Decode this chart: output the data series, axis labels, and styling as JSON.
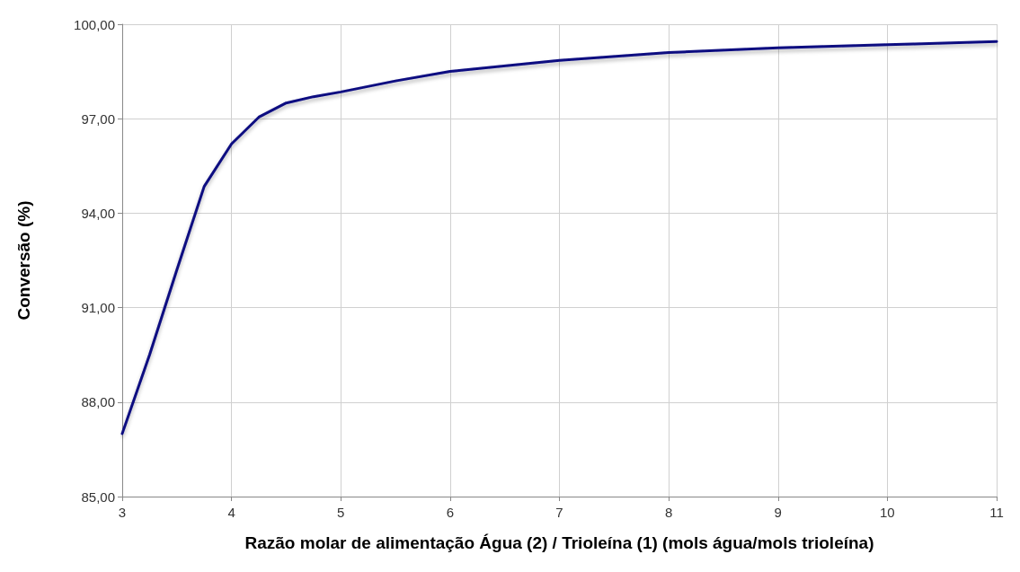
{
  "chart_data": {
    "type": "line",
    "xlabel": "Razão molar de alimentação Água (2) / Trioleína (1) (mols água/mols trioleína)",
    "ylabel": "Conversão (%)",
    "x": [
      3,
      3.25,
      3.5,
      3.75,
      4,
      4.25,
      4.5,
      4.75,
      5,
      5.5,
      6,
      7,
      8,
      9,
      10,
      11
    ],
    "series": [
      {
        "color": "#0a0a80",
        "values": [
          87.0,
          89.5,
          92.2,
          94.85,
          96.2,
          97.05,
          97.5,
          97.7,
          97.85,
          98.2,
          98.5,
          98.85,
          99.1,
          99.25,
          99.35,
          99.45
        ]
      }
    ],
    "xlim": [
      3,
      11
    ],
    "xticks": [
      3,
      4,
      5,
      6,
      7,
      8,
      9,
      10,
      11
    ],
    "ylim": [
      85,
      100
    ],
    "yticks": [
      {
        "value": 85,
        "label": "85,00"
      },
      {
        "value": 88,
        "label": "88,00"
      },
      {
        "value": 91,
        "label": "91,00"
      },
      {
        "value": 94,
        "label": "94,00"
      },
      {
        "value": 97,
        "label": "97,00"
      },
      {
        "value": 100,
        "label": "100,00"
      }
    ],
    "grid": true,
    "marker": "none",
    "line_style": "solid"
  }
}
